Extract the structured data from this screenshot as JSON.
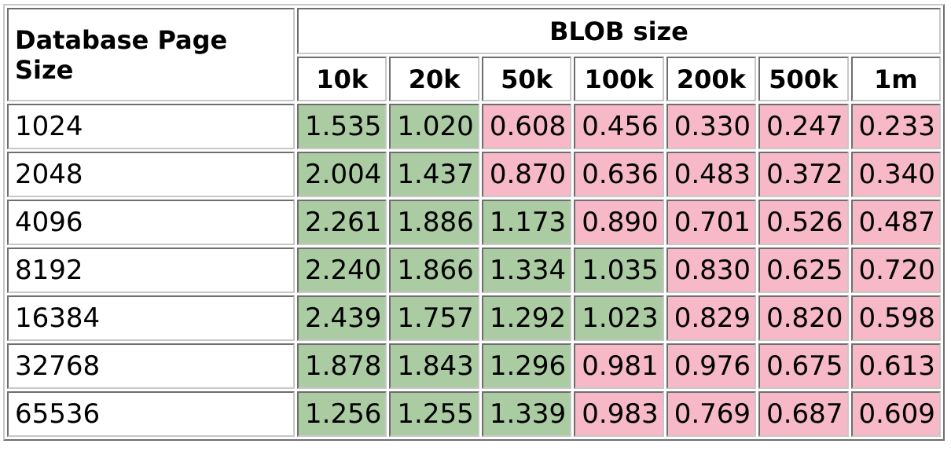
{
  "table": {
    "corner_header": "Database Page Size",
    "group_header": "BLOB size",
    "columns": [
      "10k",
      "20k",
      "50k",
      "100k",
      "200k",
      "500k",
      "1m"
    ],
    "colors": {
      "highlight_good": "#abcba3",
      "highlight_bad": "#f7b8c8"
    },
    "rows": [
      {
        "label": "1024",
        "values": [
          "1.535",
          "1.020",
          "0.608",
          "0.456",
          "0.330",
          "0.247",
          "0.233"
        ],
        "good": [
          true,
          true,
          false,
          false,
          false,
          false,
          false
        ]
      },
      {
        "label": "2048",
        "values": [
          "2.004",
          "1.437",
          "0.870",
          "0.636",
          "0.483",
          "0.372",
          "0.340"
        ],
        "good": [
          true,
          true,
          false,
          false,
          false,
          false,
          false
        ]
      },
      {
        "label": "4096",
        "values": [
          "2.261",
          "1.886",
          "1.173",
          "0.890",
          "0.701",
          "0.526",
          "0.487"
        ],
        "good": [
          true,
          true,
          true,
          false,
          false,
          false,
          false
        ]
      },
      {
        "label": "8192",
        "values": [
          "2.240",
          "1.866",
          "1.334",
          "1.035",
          "0.830",
          "0.625",
          "0.720"
        ],
        "good": [
          true,
          true,
          true,
          true,
          false,
          false,
          false
        ]
      },
      {
        "label": "16384",
        "values": [
          "2.439",
          "1.757",
          "1.292",
          "1.023",
          "0.829",
          "0.820",
          "0.598"
        ],
        "good": [
          true,
          true,
          true,
          true,
          false,
          false,
          false
        ]
      },
      {
        "label": "32768",
        "values": [
          "1.878",
          "1.843",
          "1.296",
          "0.981",
          "0.976",
          "0.675",
          "0.613"
        ],
        "good": [
          true,
          true,
          true,
          false,
          false,
          false,
          false
        ]
      },
      {
        "label": "65536",
        "values": [
          "1.256",
          "1.255",
          "1.339",
          "0.983",
          "0.769",
          "0.687",
          "0.609"
        ],
        "good": [
          true,
          true,
          true,
          false,
          false,
          false,
          false
        ]
      }
    ]
  }
}
